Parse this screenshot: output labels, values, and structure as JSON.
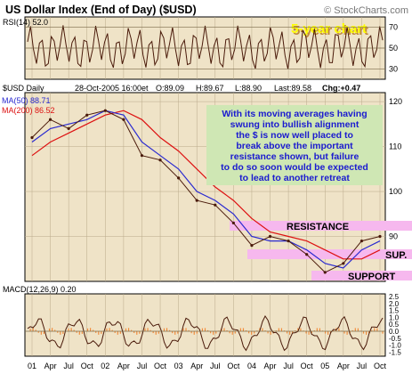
{
  "header": {
    "title": "US Dollar Index (End of Day) ($USD)",
    "watermark": "© StockCharts.com"
  },
  "colors": {
    "panel_bg": "#efe3c7",
    "price": "#4a1a0a",
    "ma50": "#2a2ad0",
    "ma200": "#dd1111",
    "resistance_band": "#f6b8ee",
    "annotation_bg": "#cfe7b4",
    "annotation_text": "#1a1ad0",
    "badge_text": "#ffff00",
    "badge_shadow": "#c08a3a",
    "macd_hist": "#f08c3c"
  },
  "rsi_panel": {
    "label": "RSI(14) 52.0",
    "ticks": [
      "70",
      "50",
      "30"
    ],
    "badge": "5-year chart"
  },
  "price_panel": {
    "symbol_label": "$USD Daily",
    "date": "28-Oct-2005 16:00et",
    "open": "O:89.09",
    "high": "H:89.67",
    "low": "L:88.90",
    "last": "Last:89.58",
    "change": "Chg:+0.47",
    "ma50_label": "MA(50) 88.71",
    "ma200_label": "MA(200) 86.52",
    "ticks": [
      "120",
      "110",
      "100",
      "90"
    ],
    "annotation": "With its moving averages having swung into bullish alignment the $ is now well placed to break above the important resistance shown, but failure to do so soon would be expected to lead to another retreat",
    "resistance_label": "RESISTANCE",
    "sup_label": "SUP.",
    "support_label": "SUPPORT"
  },
  "macd_panel": {
    "label": "MACD(12,26,9) 0.20",
    "ticks": [
      "2.5",
      "2.0",
      "1.5",
      "1.0",
      "0.5",
      "0.0",
      "-0.5",
      "-1.0",
      "-1.5"
    ]
  },
  "x_axis": {
    "labels": [
      "01",
      "Apr",
      "Jul",
      "Oct",
      "02",
      "Apr",
      "Jul",
      "Oct",
      "03",
      "Apr",
      "Jul",
      "Oct",
      "04",
      "Apr",
      "Jul",
      "Oct",
      "05",
      "Apr",
      "Jul",
      "Oct"
    ]
  },
  "chart_data": {
    "type": "line",
    "title": "US Dollar Index (End of Day) ($USD)",
    "x": [
      "01",
      "Apr",
      "Jul",
      "Oct",
      "02",
      "Apr",
      "Jul",
      "Oct",
      "03",
      "Apr",
      "Jul",
      "Oct",
      "04",
      "Apr",
      "Jul",
      "Oct",
      "05",
      "Apr",
      "Jul",
      "Oct"
    ],
    "series": [
      {
        "name": "$USD Daily",
        "values": [
          112,
          116,
          114,
          117,
          118,
          116,
          108,
          107,
          103,
          98,
          97,
          93,
          88,
          90,
          89,
          86,
          82,
          84,
          89,
          90
        ]
      },
      {
        "name": "MA(50) 88.71",
        "values": [
          111,
          114,
          115,
          116,
          118,
          117,
          111,
          108,
          105,
          100,
          98,
          95,
          90,
          89,
          89,
          87,
          84,
          83,
          87,
          89
        ]
      },
      {
        "name": "MA(200) 86.52",
        "values": [
          108,
          111,
          113,
          115,
          117,
          118,
          116,
          112,
          109,
          105,
          101,
          98,
          94,
          91,
          90,
          89,
          87,
          85,
          85,
          87
        ]
      }
    ],
    "ylim": [
      80,
      122
    ],
    "rsi": {
      "ylim": [
        20,
        80
      ],
      "levels": [
        70,
        50,
        30
      ],
      "last": 52.0
    },
    "macd": {
      "ylim": [
        -1.8,
        2.7
      ],
      "last": 0.2
    }
  }
}
